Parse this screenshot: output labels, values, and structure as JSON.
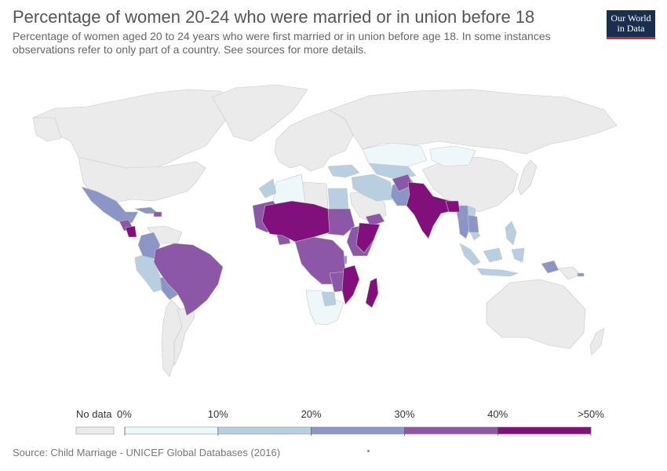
{
  "header": {
    "title": "Percentage of women 20-24 who were married or in union before 18",
    "subtitle": "Percentage of women aged 20 to 24 years who were first married or in union before age 18. In some instances observations refer to only part of a country. See sources for more details."
  },
  "logo": {
    "line1": "Our World",
    "line2": "in Data"
  },
  "colors": {
    "no_data": "#ebebeb",
    "ocean": "#ffffff",
    "border": "#c8c8c8",
    "bins": [
      "#eef7fa",
      "#b8cee1",
      "#8c96c6",
      "#8c57a6",
      "#810f7c"
    ]
  },
  "legend": {
    "no_data_label": "No data",
    "ticks": [
      "0%",
      "10%",
      "20%",
      "30%",
      "40%",
      ">50%"
    ]
  },
  "footer": {
    "source": "Source: Child Marriage - UNICEF Global Databases (2016)"
  },
  "map_data": {
    "no_data": [
      "North America (excl. Mexico)",
      "Greenland",
      "Europe",
      "Russia",
      "Australia",
      "Argentina",
      "Chile",
      "Paraguay",
      "Venezuela",
      "Libya",
      "Saudi Arabia",
      "China",
      "Japan",
      "Papua New Guinea"
    ],
    "0-10%": [
      "Algeria",
      "Tunisia",
      "Kazakhstan",
      "Mongolia",
      "Uzbekistan",
      "Namibia",
      "South Africa",
      "Bosnia and Herzegovina"
    ],
    "10-20%": [
      "Morocco",
      "Egypt",
      "Turkey",
      "Iran",
      "Iraq",
      "Syria",
      "Jordan",
      "Tajikistan",
      "Turkmenistan",
      "Kyrgyzstan",
      "Vietnam",
      "Indonesia",
      "Philippines",
      "Peru",
      "Uruguay",
      "Botswana",
      "Guyana",
      "Sri Lanka"
    ],
    "20-30%": [
      "Mexico",
      "Colombia",
      "Ecuador",
      "Bolivia",
      "Cuba",
      "Pakistan",
      "Thailand",
      "Myanmar",
      "Laos",
      "Cambodia",
      "Rwanda",
      "Burundi",
      "Timor-Leste",
      "Solomon Islands"
    ],
    "30-40%": [
      "Brazil",
      "Mauritania",
      "Senegal",
      "Gambia",
      "Ghana",
      "Togo",
      "Benin",
      "Sudan",
      "Ethiopia",
      "Kenya",
      "Uganda",
      "DR Congo",
      "Congo",
      "Gabon",
      "Cameroon",
      "Tanzania",
      "Zambia",
      "Zimbabwe",
      "Yemen",
      "Afghanistan",
      "Nepal",
      "Honduras",
      "Guatemala",
      "Dominican Republic"
    ],
    "50%+": [
      "Niger",
      "Chad",
      "Mali",
      "Burkina Faso",
      "Guinea",
      "Central African Republic",
      "Somalia",
      "South Sudan",
      "Mozambique",
      "Malawi",
      "Madagascar",
      "India",
      "Bangladesh",
      "Nicaragua",
      "Nigeria",
      "Eritrea"
    ]
  }
}
